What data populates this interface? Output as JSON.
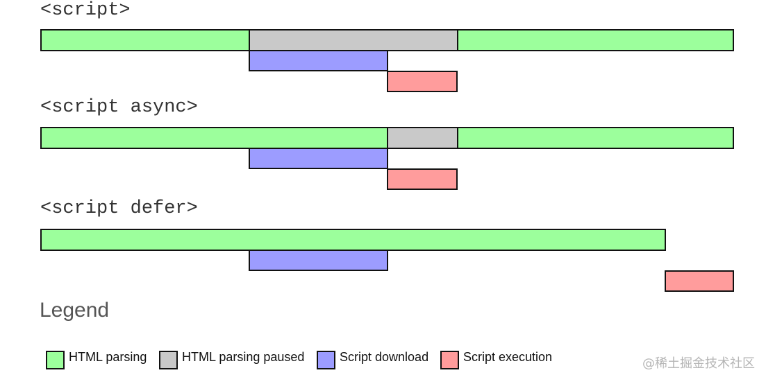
{
  "colors": {
    "html_parsing": "#9cff9c",
    "html_parsing_paused": "#c9c9c9",
    "script_download": "#9c9cff",
    "script_execution": "#ff9c9c",
    "border": "#111111"
  },
  "sections": [
    {
      "label": "<script>",
      "bars": [
        {
          "kind": "html_parsing"
        },
        {
          "kind": "html_parsing_paused"
        },
        {
          "kind": "html_parsing"
        },
        {
          "kind": "script_download"
        },
        {
          "kind": "script_execution"
        }
      ]
    },
    {
      "label": "<script async>",
      "bars": [
        {
          "kind": "html_parsing"
        },
        {
          "kind": "html_parsing_paused"
        },
        {
          "kind": "html_parsing"
        },
        {
          "kind": "script_download"
        },
        {
          "kind": "script_execution"
        }
      ]
    },
    {
      "label": "<script defer>",
      "bars": [
        {
          "kind": "html_parsing"
        },
        {
          "kind": "script_download"
        },
        {
          "kind": "script_execution"
        }
      ]
    }
  ],
  "legend": {
    "title": "Legend",
    "items": [
      {
        "kind": "html_parsing",
        "label": "HTML parsing"
      },
      {
        "kind": "html_parsing_paused",
        "label": "HTML parsing paused"
      },
      {
        "kind": "script_download",
        "label": "Script download"
      },
      {
        "kind": "script_execution",
        "label": "Script execution"
      }
    ]
  },
  "watermark": "@稀土掘金技术社区"
}
